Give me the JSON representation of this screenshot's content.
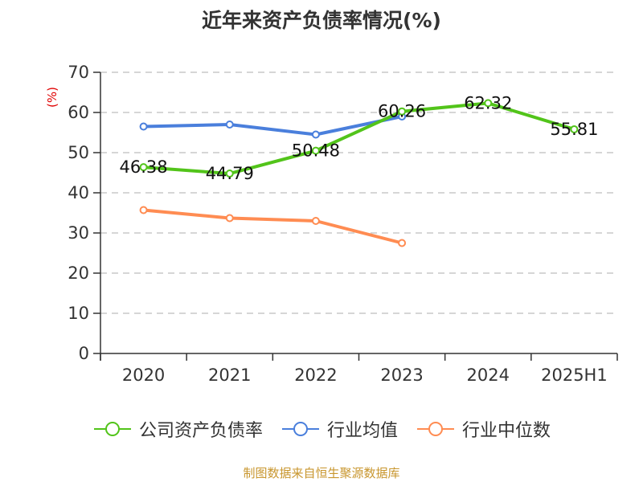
{
  "title": "近年来资产负债率情况(%)",
  "y_unit_label": "(%)",
  "legend": [
    {
      "label": "公司资产负债率",
      "color": "#52c41a"
    },
    {
      "label": "行业均值",
      "color": "#4a7fdc"
    },
    {
      "label": "行业中位数",
      "color": "#ff8c52"
    }
  ],
  "source": "制图数据来自恒生聚源数据库",
  "chart_data": {
    "type": "line",
    "title": "近年来资产负债率情况(%)",
    "xlabel": "",
    "ylabel": "(%)",
    "ylim": [
      0,
      70
    ],
    "yticks": [
      0,
      10,
      20,
      30,
      40,
      50,
      60,
      70
    ],
    "grid": true,
    "legend_position": "bottom",
    "categories": [
      "2020",
      "2021",
      "2022",
      "2023",
      "2024",
      "2025H1"
    ],
    "series": [
      {
        "name": "公司资产负债率",
        "color": "#52c41a",
        "values": [
          46.38,
          44.79,
          50.48,
          60.26,
          62.32,
          55.81
        ],
        "labels": [
          "46.38",
          "44.79",
          "50.48",
          "60.26",
          "62.32",
          "55.81"
        ]
      },
      {
        "name": "行业均值",
        "color": "#4a7fdc",
        "values": [
          56.5,
          57.0,
          54.5,
          59.0,
          null,
          null
        ]
      },
      {
        "name": "行业中位数",
        "color": "#ff8c52",
        "values": [
          35.7,
          33.7,
          33.0,
          27.5,
          null,
          null
        ]
      }
    ]
  }
}
